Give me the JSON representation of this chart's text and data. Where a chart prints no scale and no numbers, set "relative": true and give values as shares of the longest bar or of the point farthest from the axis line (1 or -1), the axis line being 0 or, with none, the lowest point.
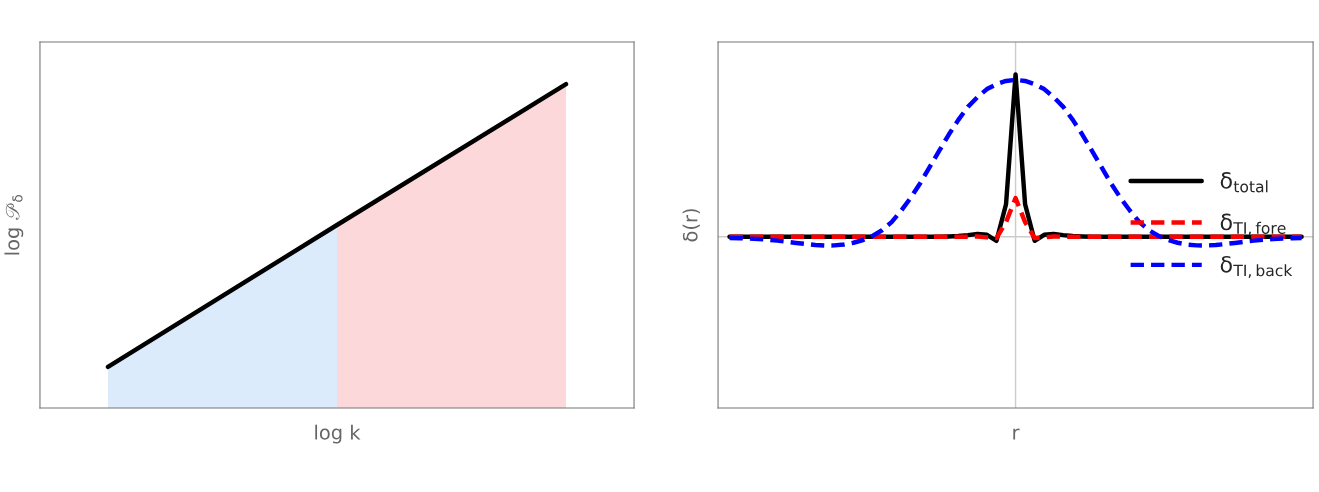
{
  "chart_data": [
    {
      "type": "line",
      "relative": true,
      "xlabel": "log k",
      "ylabel": "log 𝒫$_{δ}$",
      "categories": [
        null,
        null,
        null
      ],
      "legend": false,
      "series": [
        {
          "type": "area",
          "color": "#dbebfb",
          "values": [
            0.127,
            0.565,
            null
          ]
        },
        {
          "type": "area",
          "color": "#fdd8da",
          "values": [
            null,
            0.565,
            1
          ]
        },
        {
          "type": "line",
          "color": "#000000",
          "values": [
            0.127,
            0.565,
            1
          ]
        }
      ]
    },
    {
      "type": "line",
      "relative": true,
      "xlabel": "r",
      "ylabel": "δ(r)",
      "legend": "right",
      "categories": [
        null,
        null,
        null,
        null,
        null,
        null,
        null,
        null,
        null,
        null,
        null,
        null,
        null,
        null,
        null,
        null,
        null,
        null,
        null,
        null,
        null,
        null,
        null,
        null,
        null,
        null,
        null,
        null,
        null,
        null,
        null,
        null,
        null,
        null,
        null,
        null,
        null,
        null,
        null,
        null,
        null,
        null,
        null,
        null,
        null,
        null,
        null,
        null,
        null,
        null,
        null,
        null,
        null,
        null,
        null,
        null,
        null,
        null,
        null,
        null,
        null
      ],
      "ref_lines": [
        {
          "axis": "y",
          "value": 0,
          "color": "#cccccc"
        }
      ],
      "series": [
        {
          "name": "δ$_{total}$",
          "color": "#000000",
          "line_style": "solid",
          "values": [
            0,
            0,
            0,
            0,
            0,
            0,
            0,
            0,
            0,
            0,
            0,
            0,
            0,
            0,
            0,
            0,
            0,
            0,
            0,
            0,
            0,
            0,
            0,
            0.002,
            0.005,
            0.01,
            0.017,
            0.012,
            -0.025,
            0.2,
            1.0,
            0.2,
            -0.025,
            0.012,
            0.017,
            0.01,
            0.005,
            0.002,
            0,
            0,
            0,
            0,
            0,
            0,
            0,
            0,
            0,
            0,
            0,
            0,
            0,
            0,
            0,
            0,
            0,
            0,
            0,
            0,
            0,
            0,
            0
          ]
        },
        {
          "name": "δ$_{TI,fore}$",
          "color": "#ff0000",
          "line_style": "dashed",
          "values": [
            0,
            0,
            0,
            0,
            0,
            0,
            0,
            0,
            0,
            0,
            0,
            0,
            0,
            0,
            0,
            0,
            0,
            0,
            0,
            0,
            0,
            0,
            0,
            0,
            0,
            0,
            0.002,
            -0.004,
            -0.008,
            0.09,
            0.238,
            0.09,
            -0.008,
            -0.004,
            0.002,
            0,
            0,
            0,
            0,
            0,
            0,
            0,
            0,
            0,
            0,
            0,
            0,
            0,
            0,
            0,
            0,
            0,
            0,
            0,
            0,
            0,
            0,
            0,
            0,
            0,
            0
          ]
        },
        {
          "name": "δ$_{TI,back}$",
          "color": "#0000ff",
          "line_style": "dashed",
          "values": [
            -0.008,
            -0.009,
            -0.011,
            -0.014,
            -0.018,
            -0.024,
            -0.031,
            -0.038,
            -0.045,
            -0.051,
            -0.054,
            -0.053,
            -0.048,
            -0.037,
            -0.02,
            0.005,
            0.04,
            0.09,
            0.16,
            0.24,
            0.33,
            0.43,
            0.53,
            0.63,
            0.72,
            0.8,
            0.86,
            0.91,
            0.94,
            0.96,
            0.967,
            0.96,
            0.94,
            0.91,
            0.86,
            0.8,
            0.72,
            0.63,
            0.53,
            0.43,
            0.33,
            0.24,
            0.16,
            0.09,
            0.04,
            0.005,
            -0.02,
            -0.037,
            -0.048,
            -0.053,
            -0.054,
            -0.051,
            -0.045,
            -0.038,
            -0.031,
            -0.024,
            -0.018,
            -0.014,
            -0.011,
            -0.009,
            -0.008
          ]
        }
      ]
    }
  ]
}
